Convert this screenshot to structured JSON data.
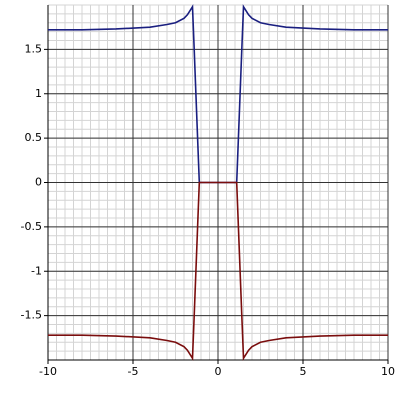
{
  "chart_data": {
    "type": "line",
    "x": [
      -10,
      -8,
      -6,
      -4,
      -3,
      -2.5,
      -2,
      -1.8,
      -1.6,
      -1.5,
      -1.4,
      -1.3,
      -1.2,
      -1.1,
      -0.5,
      0,
      0.5,
      1.1,
      1.2,
      1.3,
      1.4,
      1.5,
      1.6,
      1.8,
      2,
      2.5,
      3,
      4,
      6,
      8,
      10
    ],
    "series": [
      {
        "color": "#1a1f80",
        "values": [
          1.72,
          1.72,
          1.73,
          1.75,
          1.78,
          1.8,
          1.85,
          1.89,
          1.95,
          1.98,
          1.5,
          1.0,
          0.5,
          0,
          0,
          0,
          0,
          0,
          0.5,
          1.0,
          1.5,
          1.98,
          1.95,
          1.89,
          1.85,
          1.8,
          1.78,
          1.75,
          1.73,
          1.72,
          1.72
        ]
      },
      {
        "color": "#7a0d0d",
        "values": [
          -1.72,
          -1.72,
          -1.73,
          -1.75,
          -1.78,
          -1.8,
          -1.85,
          -1.89,
          -1.95,
          -1.98,
          -1.5,
          -1.0,
          -0.5,
          0,
          0,
          0,
          0,
          0,
          -0.5,
          -1.0,
          -1.5,
          -1.98,
          -1.95,
          -1.89,
          -1.85,
          -1.8,
          -1.78,
          -1.75,
          -1.73,
          -1.72,
          -1.72
        ]
      }
    ],
    "xlim": [
      -10,
      10
    ],
    "ylim": [
      -2,
      2
    ],
    "xticks": [
      -10,
      -5,
      0,
      5,
      10
    ],
    "yticks": [
      -1.5,
      -1,
      -0.5,
      0,
      0.5,
      1,
      1.5
    ],
    "grid": true
  }
}
